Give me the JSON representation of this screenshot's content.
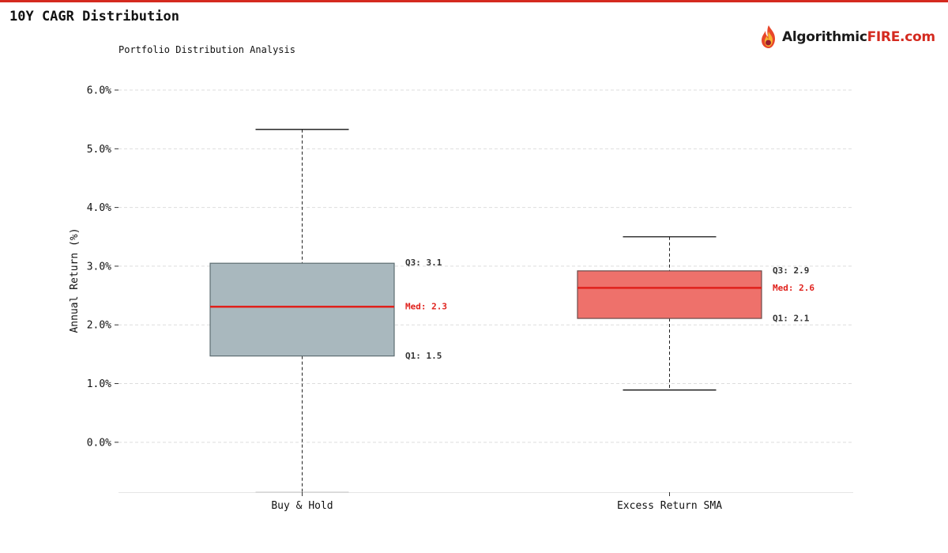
{
  "header": {
    "title": "10Y CAGR Distribution",
    "logo_text_a": "Algorithmic",
    "logo_text_b": "FIRE.com"
  },
  "colors": {
    "accent": "#d42a1f",
    "median": "#e0211c",
    "grid": "#dddddd"
  },
  "chart_data": {
    "type": "box",
    "title": "",
    "subtitle": "Portfolio Distribution Analysis",
    "xlabel": "",
    "ylabel": "Annual Return (%)",
    "ylim": [
      -0.85,
      6.35
    ],
    "yticks": [
      {
        "value": 6.0,
        "label": "6.0%"
      },
      {
        "value": 5.0,
        "label": "5.0%"
      },
      {
        "value": 4.0,
        "label": "4.0%"
      },
      {
        "value": 3.0,
        "label": "3.0%"
      },
      {
        "value": 2.0,
        "label": "2.0%"
      },
      {
        "value": 1.0,
        "label": "1.0%"
      },
      {
        "value": 0.0,
        "label": "0.0%"
      }
    ],
    "grid": true,
    "categories": [
      "Buy & Hold",
      "Excess Return SMA"
    ],
    "boxes": [
      {
        "name": "Buy & Hold",
        "whisker_low": -0.85,
        "q1": 1.47,
        "median": 2.31,
        "q3": 3.05,
        "whisker_high": 5.33,
        "fill": "#a9b8be",
        "edge": "#5d6d72",
        "q1_label": "Q1: 1.5",
        "median_label": "Med: 2.3",
        "q3_label": "Q3: 3.1"
      },
      {
        "name": "Excess Return SMA",
        "whisker_low": 0.89,
        "q1": 2.11,
        "median": 2.63,
        "q3": 2.92,
        "whisker_high": 3.5,
        "fill": "#ee716b",
        "edge": "#6b4b4a",
        "q1_label": "Q1: 2.1",
        "median_label": "Med: 2.6",
        "q3_label": "Q3: 2.9"
      }
    ]
  }
}
